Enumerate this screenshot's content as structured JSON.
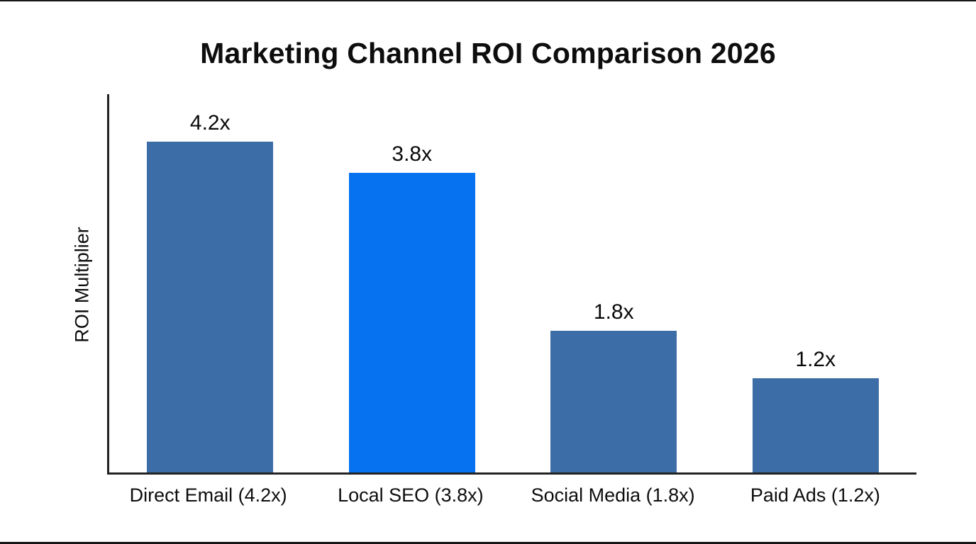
{
  "page": {
    "background": "#ffffff",
    "edge_color": "#161616"
  },
  "chart_data": {
    "type": "bar",
    "title": "Marketing Channel ROI Comparison 2026",
    "ylabel": "ROI Multiplier",
    "xlabel": "",
    "categories": [
      "Direct Email (4.2x)",
      "Local SEO (3.8x)",
      "Social Media (1.8x)",
      "Paid Ads (1.2x)"
    ],
    "values": [
      4.2,
      3.8,
      1.8,
      1.2
    ],
    "value_labels": [
      "4.2x",
      "3.8x",
      "1.8x",
      "1.2x"
    ],
    "bar_colors": [
      "#3D6DA6",
      "#0672F0",
      "#3D6DA6",
      "#3D6DA6"
    ],
    "highlighted_category": "Local SEO (3.8x)",
    "ylim": [
      0,
      4.8
    ],
    "grid": false,
    "legend": null,
    "axis_color": "#222222",
    "text_color": "#0d0d0d"
  }
}
